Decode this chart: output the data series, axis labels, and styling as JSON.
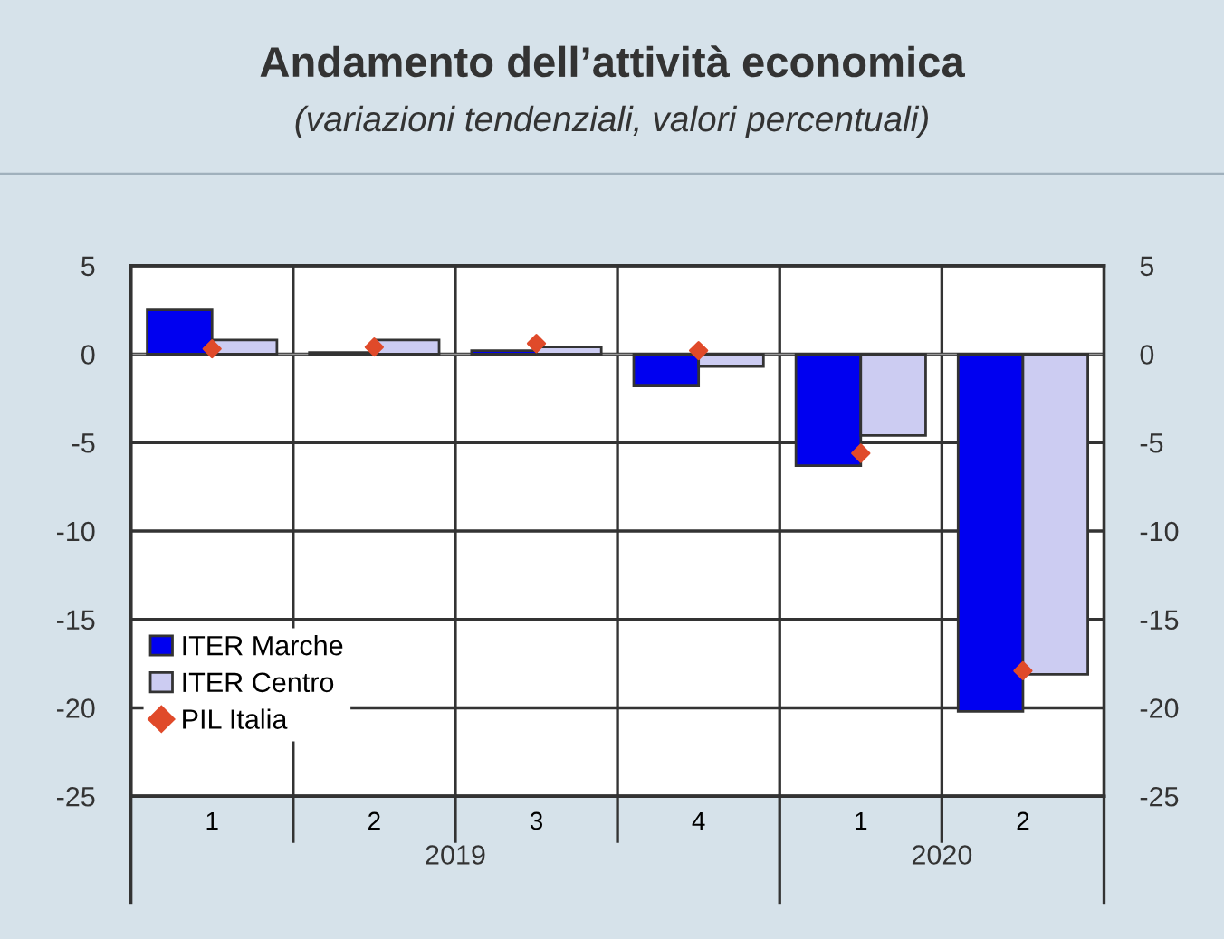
{
  "chart_data": {
    "type": "bar",
    "title": "Andamento dell’attività economica",
    "subtitle": "(variazioni tendenziali, valori percentuali)",
    "categories": [
      "1",
      "2",
      "3",
      "4",
      "1",
      "2"
    ],
    "annotations": [
      "2019",
      "2020"
    ],
    "series": [
      {
        "name": "ITER Marche",
        "color": "#0000f0",
        "values": [
          2.5,
          0.1,
          0.2,
          -1.8,
          -6.3,
          -20.2
        ]
      },
      {
        "name": "ITER Centro",
        "color": "#ccccf2",
        "values": [
          0.8,
          0.8,
          0.4,
          -0.7,
          -4.6,
          -18.1
        ]
      },
      {
        "name": "PIL Italia",
        "type": "scatter",
        "color": "#e04a2a",
        "marker": "diamond",
        "values": [
          0.3,
          0.4,
          0.6,
          0.2,
          -5.6,
          -17.9
        ]
      }
    ],
    "ylim": [
      -25,
      5
    ],
    "yticks": [
      -25,
      -20,
      -15,
      -10,
      -5,
      0,
      5
    ],
    "y2lim": [
      -25,
      5
    ],
    "y2ticks": [
      -25,
      -20,
      -15,
      -10,
      -5,
      0,
      5
    ],
    "grid": true,
    "legend": "bottom left"
  }
}
